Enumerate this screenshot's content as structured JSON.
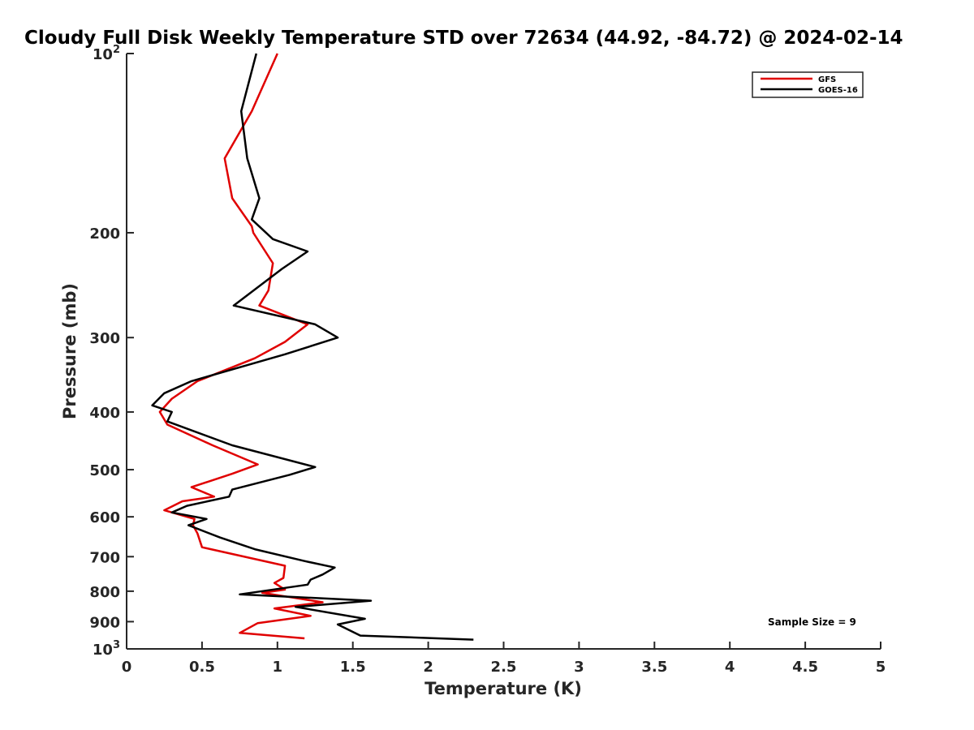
{
  "chart_data": {
    "type": "line",
    "title": "Cloudy Full Disk Weekly Temperature STD over 72634 (44.92, -84.72) @ 2024-02-14",
    "xlabel": "Temperature (K)",
    "ylabel": "Pressure (mb)",
    "xlim": [
      0,
      5
    ],
    "ylim": [
      100,
      1000
    ],
    "y_scale": "log",
    "y_reversed": true,
    "x_ticks": [
      0,
      0.5,
      1,
      1.5,
      2,
      2.5,
      3,
      3.5,
      4,
      4.5,
      5
    ],
    "x_tick_labels": [
      "0",
      "0.5",
      "1",
      "1.5",
      "2",
      "2.5",
      "3",
      "3.5",
      "4",
      "4.5",
      "5"
    ],
    "y_ticks": [
      100,
      200,
      300,
      400,
      500,
      600,
      700,
      800,
      900,
      1000
    ],
    "y_tick_labels": [
      {
        "base": "10",
        "exp": "2"
      },
      {
        "base": "200",
        "exp": ""
      },
      {
        "base": "300",
        "exp": ""
      },
      {
        "base": "400",
        "exp": ""
      },
      {
        "base": "500",
        "exp": ""
      },
      {
        "base": "600",
        "exp": ""
      },
      {
        "base": "700",
        "exp": ""
      },
      {
        "base": "800",
        "exp": ""
      },
      {
        "base": "900",
        "exp": ""
      },
      {
        "base": "10",
        "exp": "3"
      }
    ],
    "grid": false,
    "legend_position": "top-right",
    "series": [
      {
        "name": "GFS",
        "color": "#e00000",
        "points": [
          [
            1.0,
            100
          ],
          [
            0.83,
            125
          ],
          [
            0.65,
            150
          ],
          [
            0.7,
            175
          ],
          [
            0.83,
            195
          ],
          [
            0.84,
            200
          ],
          [
            0.97,
            225
          ],
          [
            0.94,
            250
          ],
          [
            0.88,
            265
          ],
          [
            1.2,
            285
          ],
          [
            1.05,
            305
          ],
          [
            0.85,
            325
          ],
          [
            0.47,
            355
          ],
          [
            0.3,
            380
          ],
          [
            0.22,
            400
          ],
          [
            0.27,
            420
          ],
          [
            0.57,
            455
          ],
          [
            0.87,
            490
          ],
          [
            0.7,
            508
          ],
          [
            0.43,
            535
          ],
          [
            0.58,
            555
          ],
          [
            0.37,
            565
          ],
          [
            0.25,
            585
          ],
          [
            0.45,
            605
          ],
          [
            0.44,
            620
          ],
          [
            0.47,
            640
          ],
          [
            0.5,
            675
          ],
          [
            1.05,
            725
          ],
          [
            1.04,
            760
          ],
          [
            0.98,
            775
          ],
          [
            1.05,
            795
          ],
          [
            0.9,
            805
          ],
          [
            1.1,
            820
          ],
          [
            1.3,
            835
          ],
          [
            0.98,
            855
          ],
          [
            1.22,
            880
          ],
          [
            0.87,
            905
          ],
          [
            0.75,
            940
          ],
          [
            1.18,
            960
          ]
        ]
      },
      {
        "name": "GOES-16",
        "color": "#000000",
        "points": [
          [
            0.86,
            100
          ],
          [
            0.76,
            125
          ],
          [
            0.8,
            150
          ],
          [
            0.88,
            175
          ],
          [
            0.83,
            190
          ],
          [
            0.97,
            205
          ],
          [
            1.2,
            215
          ],
          [
            1.03,
            230
          ],
          [
            0.71,
            265
          ],
          [
            1.25,
            285
          ],
          [
            1.4,
            300
          ],
          [
            1.05,
            320
          ],
          [
            0.43,
            355
          ],
          [
            0.25,
            372
          ],
          [
            0.17,
            390
          ],
          [
            0.3,
            400
          ],
          [
            0.27,
            415
          ],
          [
            0.7,
            455
          ],
          [
            1.25,
            495
          ],
          [
            1.08,
            510
          ],
          [
            0.7,
            540
          ],
          [
            0.68,
            555
          ],
          [
            0.4,
            575
          ],
          [
            0.3,
            590
          ],
          [
            0.53,
            605
          ],
          [
            0.41,
            620
          ],
          [
            0.62,
            650
          ],
          [
            0.85,
            680
          ],
          [
            1.18,
            712
          ],
          [
            1.38,
            730
          ],
          [
            1.3,
            750
          ],
          [
            1.22,
            765
          ],
          [
            1.2,
            780
          ],
          [
            0.75,
            810
          ],
          [
            1.62,
            830
          ],
          [
            1.12,
            850
          ],
          [
            1.58,
            890
          ],
          [
            1.4,
            910
          ],
          [
            1.55,
            950
          ],
          [
            2.3,
            965
          ]
        ]
      }
    ],
    "annotation": "Sample Size = 9"
  }
}
